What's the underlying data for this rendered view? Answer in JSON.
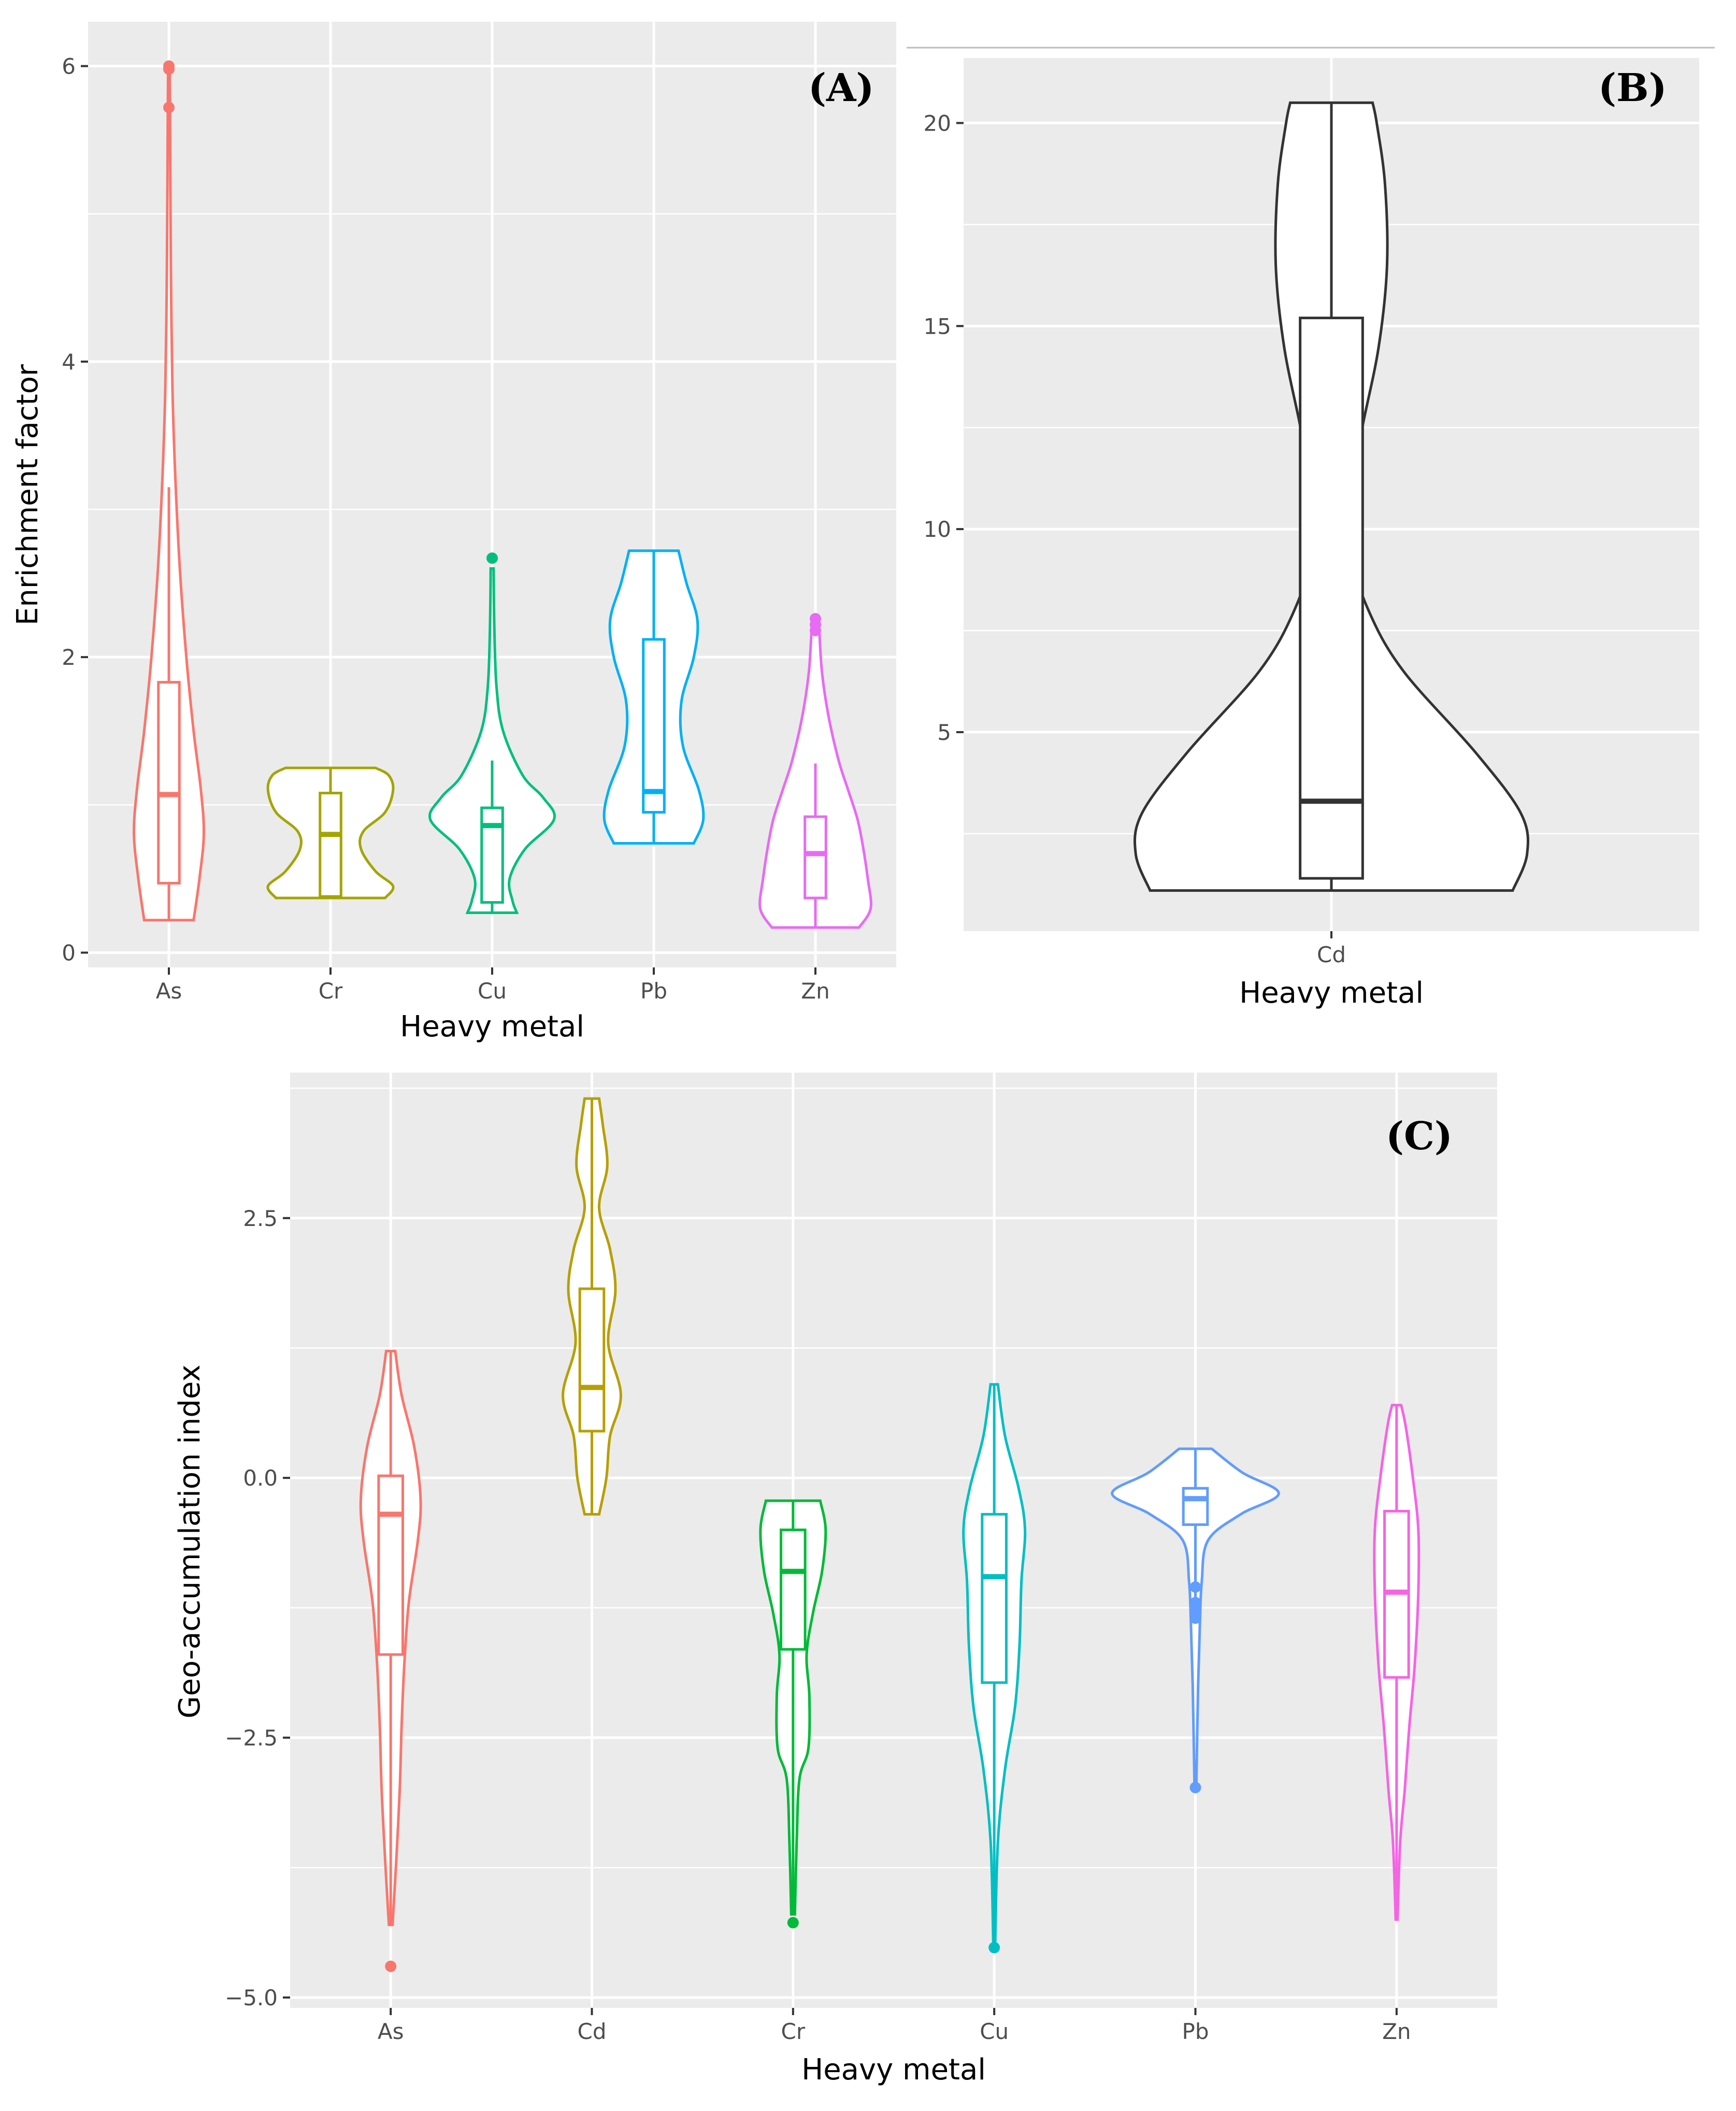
{
  "colors": {
    "As": "#F8766D",
    "Cd": "#B79F00",
    "Cr": "#00BA38",
    "Cu": "#00BFC4",
    "Pb": "#619CFF",
    "Zn": "#F564E3",
    "PbA": "#00B0F6",
    "CuA": "#00BF7D",
    "CrA": "#A3A500",
    "ZnA": "#E76BF3",
    "panel_bg": "#EBEBEB",
    "grid": "#FFFFFF",
    "single": "#333333"
  },
  "chart_data": [
    {
      "id": "A",
      "panel_label": "(A)",
      "type": "violin",
      "xlabel": "Heavy metal",
      "ylabel": "Enrichment factor",
      "ylim": [
        -0.1,
        6.3
      ],
      "yticks": [
        0,
        2,
        4,
        6
      ],
      "categories": [
        "As",
        "Cr",
        "Cu",
        "Pb",
        "Zn"
      ],
      "series": [
        {
          "name": "As",
          "color_key": "As",
          "min": 0.22,
          "q1": 0.47,
          "median": 1.07,
          "q3": 1.83,
          "upper_whisker": 3.15,
          "outliers": [
            5.72,
            5.98,
            6.0
          ],
          "density": [
            [
              0.22,
              0.34
            ],
            [
              0.5,
              0.42
            ],
            [
              0.8,
              0.48
            ],
            [
              1.1,
              0.44
            ],
            [
              1.5,
              0.34
            ],
            [
              2.0,
              0.24
            ],
            [
              2.6,
              0.15
            ],
            [
              3.2,
              0.09
            ],
            [
              3.8,
              0.05
            ],
            [
              4.5,
              0.03
            ],
            [
              5.2,
              0.02
            ],
            [
              5.7,
              0.015
            ],
            [
              6.0,
              0.01
            ]
          ]
        },
        {
          "name": "Cr",
          "color_key": "CrA",
          "min": 0.37,
          "q1": 0.38,
          "median": 0.8,
          "q3": 1.08,
          "upper_whisker": 1.25,
          "outliers": [],
          "density": [
            [
              0.37,
              0.75
            ],
            [
              0.45,
              0.86
            ],
            [
              0.55,
              0.62
            ],
            [
              0.7,
              0.42
            ],
            [
              0.82,
              0.45
            ],
            [
              0.95,
              0.75
            ],
            [
              1.1,
              0.86
            ],
            [
              1.2,
              0.8
            ],
            [
              1.25,
              0.62
            ]
          ]
        },
        {
          "name": "Cu",
          "color_key": "CuA",
          "min": 0.27,
          "q1": 0.34,
          "median": 0.86,
          "q3": 0.98,
          "upper_whisker": 1.3,
          "outliers": [
            2.67
          ],
          "density": [
            [
              0.27,
              0.34
            ],
            [
              0.35,
              0.28
            ],
            [
              0.5,
              0.24
            ],
            [
              0.7,
              0.45
            ],
            [
              0.9,
              0.85
            ],
            [
              1.05,
              0.7
            ],
            [
              1.2,
              0.42
            ],
            [
              1.5,
              0.15
            ],
            [
              1.8,
              0.06
            ],
            [
              2.2,
              0.03
            ],
            [
              2.6,
              0.02
            ]
          ]
        },
        {
          "name": "Pb",
          "color_key": "PbA",
          "min": 0.74,
          "q1": 0.95,
          "median": 1.09,
          "q3": 2.12,
          "upper_whisker": 2.72,
          "outliers": [],
          "density": [
            [
              0.74,
              0.55
            ],
            [
              0.9,
              0.68
            ],
            [
              1.1,
              0.62
            ],
            [
              1.4,
              0.4
            ],
            [
              1.7,
              0.38
            ],
            [
              2.0,
              0.55
            ],
            [
              2.25,
              0.6
            ],
            [
              2.5,
              0.45
            ],
            [
              2.72,
              0.34
            ]
          ]
        },
        {
          "name": "Zn",
          "color_key": "ZnA",
          "min": 0.17,
          "q1": 0.37,
          "median": 0.67,
          "q3": 0.92,
          "upper_whisker": 1.28,
          "outliers": [
            2.18,
            2.22,
            2.26
          ],
          "density": [
            [
              0.17,
              0.6
            ],
            [
              0.3,
              0.76
            ],
            [
              0.5,
              0.72
            ],
            [
              0.7,
              0.66
            ],
            [
              0.9,
              0.58
            ],
            [
              1.1,
              0.45
            ],
            [
              1.3,
              0.32
            ],
            [
              1.6,
              0.18
            ],
            [
              1.9,
              0.09
            ],
            [
              2.2,
              0.05
            ],
            [
              2.26,
              0.03
            ]
          ]
        }
      ]
    },
    {
      "id": "B",
      "panel_label": "(B)",
      "type": "violin",
      "xlabel": "Heavy metal",
      "ylabel": "",
      "ylim": [
        0.1,
        21.6
      ],
      "yticks": [
        5,
        10,
        15,
        20
      ],
      "categories": [
        "Cd"
      ],
      "series": [
        {
          "name": "Cd",
          "color_key": "single",
          "min": 1.1,
          "q1": 1.4,
          "median": 3.3,
          "q3": 15.2,
          "upper_whisker": 20.5,
          "outliers": [],
          "density": [
            [
              1.1,
              0.88
            ],
            [
              2.0,
              0.95
            ],
            [
              3.0,
              0.92
            ],
            [
              4.5,
              0.7
            ],
            [
              6.5,
              0.35
            ],
            [
              8.0,
              0.18
            ],
            [
              9.5,
              0.09
            ],
            [
              11.0,
              0.1
            ],
            [
              12.5,
              0.15
            ],
            [
              14.5,
              0.23
            ],
            [
              16.5,
              0.27
            ],
            [
              18.5,
              0.26
            ],
            [
              20.0,
              0.22
            ],
            [
              20.5,
              0.2
            ]
          ]
        }
      ]
    },
    {
      "id": "C",
      "panel_label": "(C)",
      "type": "violin",
      "xlabel": "Heavy metal",
      "ylabel": "Geo-accumulation index",
      "ylim": [
        -5.1,
        3.9
      ],
      "yticks": [
        -5.0,
        -2.5,
        0.0,
        2.5
      ],
      "ytick_labels": [
        "−5.0",
        "−2.5",
        "0.0",
        "2.5"
      ],
      "categories": [
        "As",
        "Cd",
        "Cr",
        "Cu",
        "Pb",
        "Zn"
      ],
      "series": [
        {
          "name": "As",
          "color_key": "As",
          "min": -4.3,
          "q1": -1.7,
          "median": -0.35,
          "q3": 0.02,
          "upper_whisker": 1.22,
          "outliers": [
            -4.7
          ],
          "density": [
            [
              -4.3,
              0.02
            ],
            [
              -3.7,
              0.06
            ],
            [
              -3.0,
              0.1
            ],
            [
              -2.4,
              0.12
            ],
            [
              -1.8,
              0.15
            ],
            [
              -1.2,
              0.2
            ],
            [
              -0.6,
              0.3
            ],
            [
              -0.2,
              0.33
            ],
            [
              0.3,
              0.26
            ],
            [
              0.8,
              0.12
            ],
            [
              1.22,
              0.05
            ]
          ]
        },
        {
          "name": "Cd",
          "color_key": "Cd",
          "min": -0.35,
          "q1": 0.45,
          "median": 0.87,
          "q3": 1.82,
          "upper_whisker": 3.65,
          "outliers": [],
          "density": [
            [
              -0.35,
              0.08
            ],
            [
              0.0,
              0.16
            ],
            [
              0.4,
              0.2
            ],
            [
              0.8,
              0.32
            ],
            [
              1.3,
              0.18
            ],
            [
              1.8,
              0.26
            ],
            [
              2.2,
              0.2
            ],
            [
              2.6,
              0.08
            ],
            [
              3.0,
              0.17
            ],
            [
              3.4,
              0.12
            ],
            [
              3.65,
              0.08
            ]
          ]
        },
        {
          "name": "Cr",
          "color_key": "Cr",
          "min": -4.2,
          "q1": -1.65,
          "median": -0.9,
          "q3": -0.5,
          "upper_whisker": -0.22,
          "outliers": [
            -4.28
          ],
          "density": [
            [
              -4.2,
              0.02
            ],
            [
              -3.5,
              0.04
            ],
            [
              -2.9,
              0.07
            ],
            [
              -2.6,
              0.17
            ],
            [
              -2.1,
              0.18
            ],
            [
              -1.7,
              0.15
            ],
            [
              -1.3,
              0.22
            ],
            [
              -0.9,
              0.32
            ],
            [
              -0.5,
              0.36
            ],
            [
              -0.22,
              0.3
            ]
          ]
        },
        {
          "name": "Cu",
          "color_key": "Cu",
          "min": -4.5,
          "q1": -1.97,
          "median": -0.95,
          "q3": -0.35,
          "upper_whisker": 0.9,
          "outliers": [
            -4.52
          ],
          "density": [
            [
              -4.5,
              0.01
            ],
            [
              -3.5,
              0.04
            ],
            [
              -2.8,
              0.12
            ],
            [
              -2.2,
              0.23
            ],
            [
              -1.6,
              0.28
            ],
            [
              -1.0,
              0.3
            ],
            [
              -0.5,
              0.34
            ],
            [
              -0.1,
              0.27
            ],
            [
              0.4,
              0.12
            ],
            [
              0.9,
              0.04
            ]
          ]
        },
        {
          "name": "Pb",
          "color_key": "Pb",
          "min": -1.3,
          "q1": -0.45,
          "median": -0.2,
          "q3": -0.1,
          "upper_whisker": 0.28,
          "outliers": [
            -1.05,
            -1.2,
            -1.28,
            -1.35,
            -2.98
          ],
          "density": [
            [
              -2.98,
              0.01
            ],
            [
              -2.0,
              0.03
            ],
            [
              -1.4,
              0.05
            ],
            [
              -1.0,
              0.07
            ],
            [
              -0.6,
              0.14
            ],
            [
              -0.35,
              0.5
            ],
            [
              -0.15,
              0.92
            ],
            [
              0.05,
              0.52
            ],
            [
              0.28,
              0.18
            ]
          ]
        },
        {
          "name": "Zn",
          "color_key": "Zn",
          "min": -4.25,
          "q1": -1.92,
          "median": -1.1,
          "q3": -0.32,
          "upper_whisker": 0.7,
          "outliers": [],
          "density": [
            [
              -4.25,
              0.01
            ],
            [
              -3.5,
              0.04
            ],
            [
              -3.0,
              0.09
            ],
            [
              -2.4,
              0.14
            ],
            [
              -1.8,
              0.2
            ],
            [
              -1.1,
              0.24
            ],
            [
              -0.5,
              0.24
            ],
            [
              0.0,
              0.18
            ],
            [
              0.5,
              0.1
            ],
            [
              0.7,
              0.05
            ]
          ]
        }
      ]
    }
  ]
}
